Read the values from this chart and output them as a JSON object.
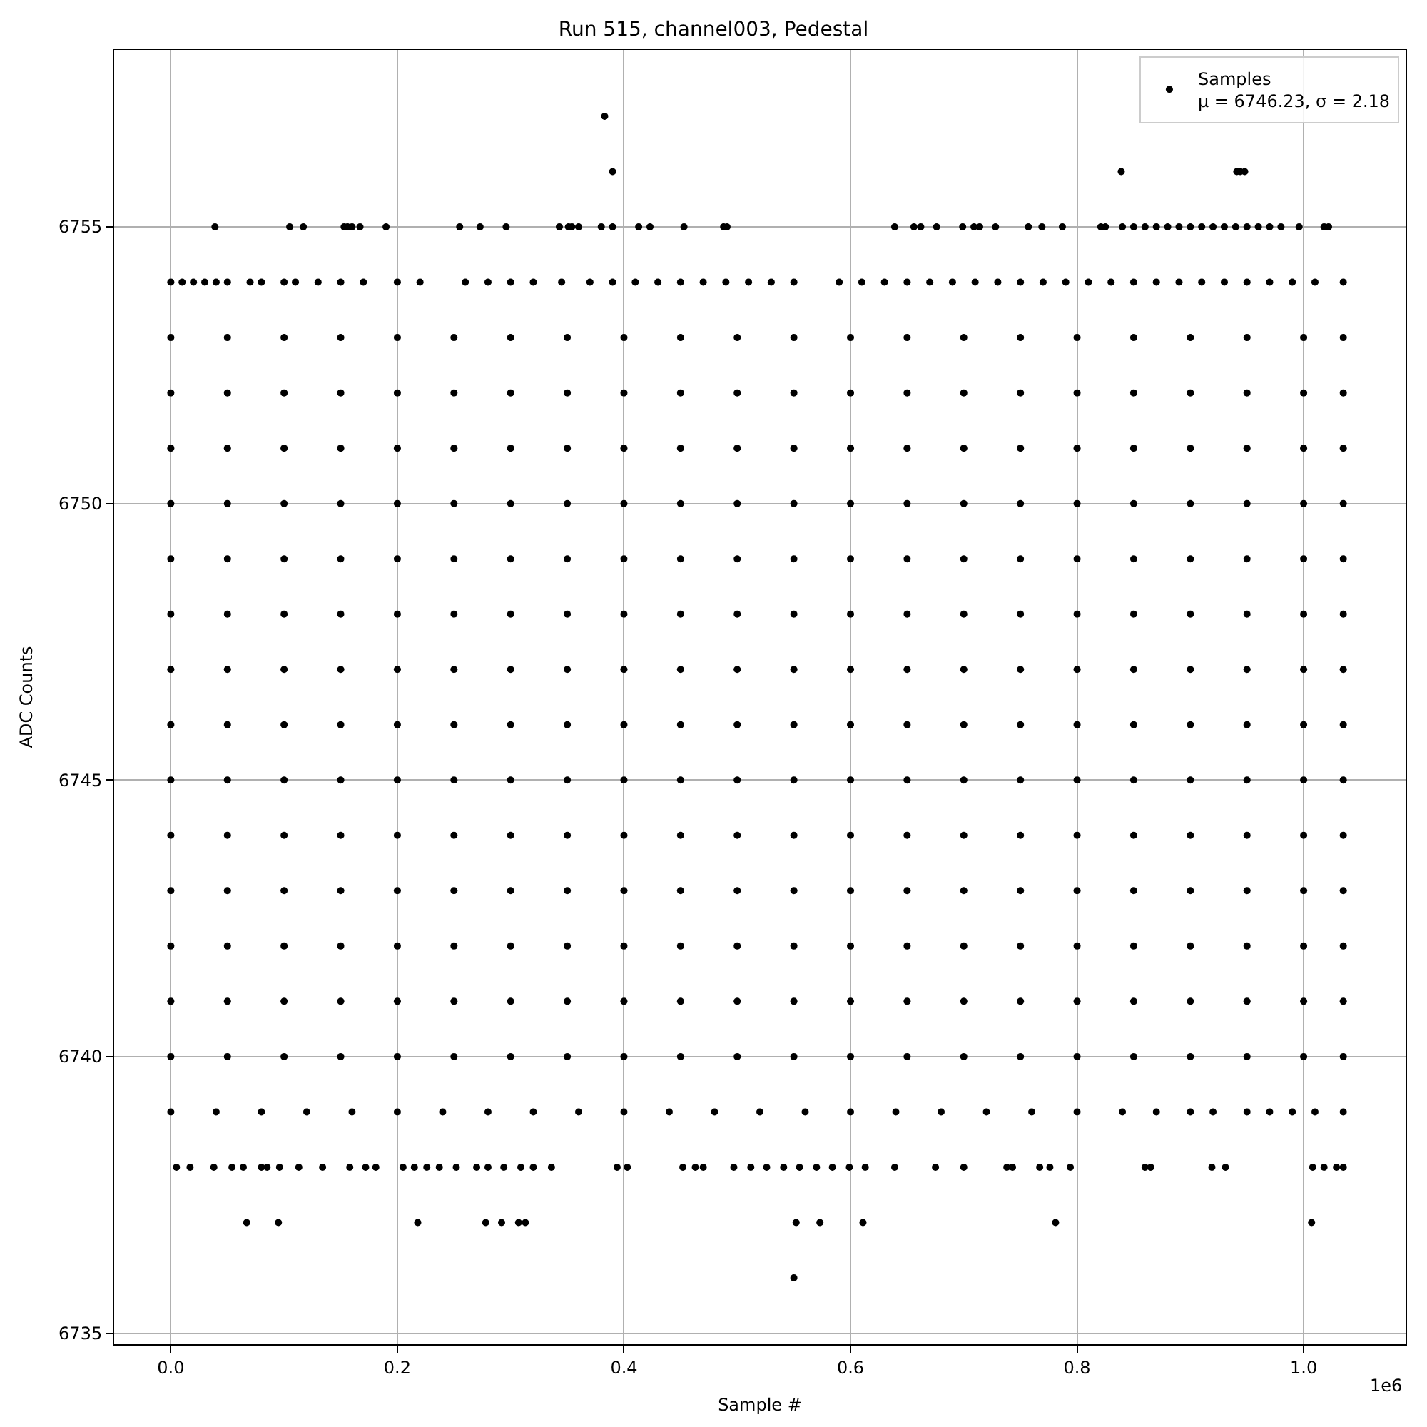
{
  "chart_data": {
    "type": "scatter",
    "title": "Run 515, channel003, Pedestal",
    "xlabel": "Sample #",
    "ylabel": "ADC Counts",
    "xlim": [
      -0.05,
      1.09
    ],
    "xticks": [
      {
        "value": 0,
        "label": "0.0"
      },
      0.2,
      0.4,
      0.6,
      0.8,
      {
        "value": 1,
        "label": "1.0"
      }
    ],
    "ylim": [
      6734.8,
      6758.2
    ],
    "yticks": [
      6735,
      6740,
      6745,
      6750,
      6755
    ],
    "grid": true,
    "legend": "top right",
    "marker": "circle",
    "annotations": [
      "1e6"
    ],
    "series": [
      {
        "name": "Samples\nμ = 6746.23, σ = 2.18",
        "color": "#000000",
        "x": [
          0.383,
          0.39,
          0.839,
          0.941,
          0.944,
          0.948
        ],
        "values": [
          6757,
          6756,
          6756,
          6756,
          6756,
          6756
        ]
      },
      {
        "color": "#000000",
        "x": [
          0.039,
          0.105,
          0.117,
          0.153,
          0.156,
          0.16,
          0.167,
          0.19,
          0.255,
          0.273,
          0.296,
          0.343,
          0.351,
          0.354,
          0.36,
          0.38,
          0.39,
          0.413,
          0.423,
          0.453,
          0.488,
          0.491,
          0.639,
          0.656,
          0.662,
          0.676,
          0.699,
          0.709,
          0.714,
          0.728,
          0.757,
          0.769,
          0.787,
          0.821,
          0.825,
          0.84,
          0.85,
          0.86,
          0.87,
          0.88,
          0.89,
          0.9,
          0.91,
          0.92,
          0.93,
          0.94,
          0.95,
          0.96,
          0.97,
          0.98,
          0.996,
          1.018,
          1.022
        ],
        "values": [
          6755,
          6755,
          6755,
          6755,
          6755,
          6755,
          6755,
          6755,
          6755,
          6755,
          6755,
          6755,
          6755,
          6755,
          6755,
          6755,
          6755,
          6755,
          6755,
          6755,
          6755,
          6755,
          6755,
          6755,
          6755,
          6755,
          6755,
          6755,
          6755,
          6755,
          6755,
          6755,
          6755,
          6755,
          6755,
          6755,
          6755,
          6755,
          6755,
          6755,
          6755,
          6755,
          6755,
          6755,
          6755,
          6755,
          6755,
          6755,
          6755,
          6755,
          6755,
          6755,
          6755
        ]
      },
      {
        "color": "#000000",
        "x": [
          0,
          0.01,
          0.02,
          0.03,
          0.04,
          0.05,
          0.07,
          0.08,
          0.1,
          0.11,
          0.13,
          0.15,
          0.17,
          0.2,
          0.22,
          0.26,
          0.28,
          0.3,
          0.32,
          0.345,
          0.37,
          0.39,
          0.41,
          0.43,
          0.45,
          0.47,
          0.49,
          0.51,
          0.53,
          0.55,
          0.59,
          0.61,
          0.63,
          0.65,
          0.67,
          0.69,
          0.71,
          0.73,
          0.75,
          0.77,
          0.79,
          0.81,
          0.83,
          0.85,
          0.87,
          0.89,
          0.91,
          0.93,
          0.95,
          0.97,
          0.99,
          1.01,
          1.035
        ],
        "values": [
          6754,
          6754,
          6754,
          6754,
          6754,
          6754,
          6754,
          6754,
          6754,
          6754,
          6754,
          6754,
          6754,
          6754,
          6754,
          6754,
          6754,
          6754,
          6754,
          6754,
          6754,
          6754,
          6754,
          6754,
          6754,
          6754,
          6754,
          6754,
          6754,
          6754,
          6754,
          6754,
          6754,
          6754,
          6754,
          6754,
          6754,
          6754,
          6754,
          6754,
          6754,
          6754,
          6754,
          6754,
          6754,
          6754,
          6754,
          6754,
          6754,
          6754,
          6754,
          6754,
          6754
        ]
      },
      {
        "color": "#000000",
        "x": [
          0,
          0.05,
          0.1,
          0.15,
          0.2,
          0.25,
          0.3,
          0.35,
          0.4,
          0.45,
          0.5,
          0.55,
          0.6,
          0.65,
          0.7,
          0.75,
          0.8,
          0.85,
          0.9,
          0.95,
          1,
          1.035
        ],
        "values": [
          6753,
          6753,
          6753,
          6753,
          6753,
          6753,
          6753,
          6753,
          6753,
          6753,
          6753,
          6753,
          6753,
          6753,
          6753,
          6753,
          6753,
          6753,
          6753,
          6753,
          6753,
          6753
        ]
      },
      {
        "color": "#000000",
        "x": [
          0,
          0.05,
          0.1,
          0.15,
          0.2,
          0.25,
          0.3,
          0.35,
          0.4,
          0.45,
          0.5,
          0.55,
          0.6,
          0.65,
          0.7,
          0.75,
          0.8,
          0.85,
          0.9,
          0.95,
          1,
          1.035
        ],
        "values": [
          6752,
          6752,
          6752,
          6752,
          6752,
          6752,
          6752,
          6752,
          6752,
          6752,
          6752,
          6752,
          6752,
          6752,
          6752,
          6752,
          6752,
          6752,
          6752,
          6752,
          6752,
          6752
        ]
      },
      {
        "color": "#000000",
        "x": [
          0,
          0.05,
          0.1,
          0.15,
          0.2,
          0.25,
          0.3,
          0.35,
          0.4,
          0.45,
          0.5,
          0.55,
          0.6,
          0.65,
          0.7,
          0.75,
          0.8,
          0.85,
          0.9,
          0.95,
          1,
          1.035
        ],
        "values": [
          6751,
          6751,
          6751,
          6751,
          6751,
          6751,
          6751,
          6751,
          6751,
          6751,
          6751,
          6751,
          6751,
          6751,
          6751,
          6751,
          6751,
          6751,
          6751,
          6751,
          6751,
          6751
        ]
      },
      {
        "color": "#000000",
        "x": [
          0,
          0.05,
          0.1,
          0.15,
          0.2,
          0.25,
          0.3,
          0.35,
          0.4,
          0.45,
          0.5,
          0.55,
          0.6,
          0.65,
          0.7,
          0.75,
          0.8,
          0.85,
          0.9,
          0.95,
          1,
          1.035
        ],
        "values": [
          6750,
          6750,
          6750,
          6750,
          6750,
          6750,
          6750,
          6750,
          6750,
          6750,
          6750,
          6750,
          6750,
          6750,
          6750,
          6750,
          6750,
          6750,
          6750,
          6750,
          6750,
          6750
        ]
      },
      {
        "color": "#000000",
        "x": [
          0,
          0.05,
          0.1,
          0.15,
          0.2,
          0.25,
          0.3,
          0.35,
          0.4,
          0.45,
          0.5,
          0.55,
          0.6,
          0.65,
          0.7,
          0.75,
          0.8,
          0.85,
          0.9,
          0.95,
          1,
          1.035
        ],
        "values": [
          6749,
          6749,
          6749,
          6749,
          6749,
          6749,
          6749,
          6749,
          6749,
          6749,
          6749,
          6749,
          6749,
          6749,
          6749,
          6749,
          6749,
          6749,
          6749,
          6749,
          6749,
          6749
        ]
      },
      {
        "color": "#000000",
        "x": [
          0,
          0.05,
          0.1,
          0.15,
          0.2,
          0.25,
          0.3,
          0.35,
          0.4,
          0.45,
          0.5,
          0.55,
          0.6,
          0.65,
          0.7,
          0.75,
          0.8,
          0.85,
          0.9,
          0.95,
          1,
          1.035
        ],
        "values": [
          6748,
          6748,
          6748,
          6748,
          6748,
          6748,
          6748,
          6748,
          6748,
          6748,
          6748,
          6748,
          6748,
          6748,
          6748,
          6748,
          6748,
          6748,
          6748,
          6748,
          6748,
          6748
        ]
      },
      {
        "color": "#000000",
        "x": [
          0,
          0.05,
          0.1,
          0.15,
          0.2,
          0.25,
          0.3,
          0.35,
          0.4,
          0.45,
          0.5,
          0.55,
          0.6,
          0.65,
          0.7,
          0.75,
          0.8,
          0.85,
          0.9,
          0.95,
          1,
          1.035
        ],
        "values": [
          6747,
          6747,
          6747,
          6747,
          6747,
          6747,
          6747,
          6747,
          6747,
          6747,
          6747,
          6747,
          6747,
          6747,
          6747,
          6747,
          6747,
          6747,
          6747,
          6747,
          6747,
          6747
        ]
      },
      {
        "color": "#000000",
        "x": [
          0,
          0.05,
          0.1,
          0.15,
          0.2,
          0.25,
          0.3,
          0.35,
          0.4,
          0.45,
          0.5,
          0.55,
          0.6,
          0.65,
          0.7,
          0.75,
          0.8,
          0.85,
          0.9,
          0.95,
          1,
          1.035
        ],
        "values": [
          6746,
          6746,
          6746,
          6746,
          6746,
          6746,
          6746,
          6746,
          6746,
          6746,
          6746,
          6746,
          6746,
          6746,
          6746,
          6746,
          6746,
          6746,
          6746,
          6746,
          6746,
          6746
        ]
      },
      {
        "color": "#000000",
        "x": [
          0,
          0.05,
          0.1,
          0.15,
          0.2,
          0.25,
          0.3,
          0.35,
          0.4,
          0.45,
          0.5,
          0.55,
          0.6,
          0.65,
          0.7,
          0.75,
          0.8,
          0.85,
          0.9,
          0.95,
          1,
          1.035
        ],
        "values": [
          6745,
          6745,
          6745,
          6745,
          6745,
          6745,
          6745,
          6745,
          6745,
          6745,
          6745,
          6745,
          6745,
          6745,
          6745,
          6745,
          6745,
          6745,
          6745,
          6745,
          6745,
          6745
        ]
      },
      {
        "color": "#000000",
        "x": [
          0,
          0.05,
          0.1,
          0.15,
          0.2,
          0.25,
          0.3,
          0.35,
          0.4,
          0.45,
          0.5,
          0.55,
          0.6,
          0.65,
          0.7,
          0.75,
          0.8,
          0.85,
          0.9,
          0.95,
          1,
          1.035
        ],
        "values": [
          6744,
          6744,
          6744,
          6744,
          6744,
          6744,
          6744,
          6744,
          6744,
          6744,
          6744,
          6744,
          6744,
          6744,
          6744,
          6744,
          6744,
          6744,
          6744,
          6744,
          6744,
          6744
        ]
      },
      {
        "color": "#000000",
        "x": [
          0,
          0.05,
          0.1,
          0.15,
          0.2,
          0.25,
          0.3,
          0.35,
          0.4,
          0.45,
          0.5,
          0.55,
          0.6,
          0.65,
          0.7,
          0.75,
          0.8,
          0.85,
          0.9,
          0.95,
          1,
          1.035
        ],
        "values": [
          6743,
          6743,
          6743,
          6743,
          6743,
          6743,
          6743,
          6743,
          6743,
          6743,
          6743,
          6743,
          6743,
          6743,
          6743,
          6743,
          6743,
          6743,
          6743,
          6743,
          6743,
          6743
        ]
      },
      {
        "color": "#000000",
        "x": [
          0,
          0.05,
          0.1,
          0.15,
          0.2,
          0.25,
          0.3,
          0.35,
          0.4,
          0.45,
          0.5,
          0.55,
          0.6,
          0.65,
          0.7,
          0.75,
          0.8,
          0.85,
          0.9,
          0.95,
          1,
          1.035
        ],
        "values": [
          6742,
          6742,
          6742,
          6742,
          6742,
          6742,
          6742,
          6742,
          6742,
          6742,
          6742,
          6742,
          6742,
          6742,
          6742,
          6742,
          6742,
          6742,
          6742,
          6742,
          6742,
          6742
        ]
      },
      {
        "color": "#000000",
        "x": [
          0,
          0.05,
          0.1,
          0.15,
          0.2,
          0.25,
          0.3,
          0.35,
          0.4,
          0.45,
          0.5,
          0.55,
          0.6,
          0.65,
          0.7,
          0.75,
          0.8,
          0.85,
          0.9,
          0.95,
          1,
          1.035
        ],
        "values": [
          6741,
          6741,
          6741,
          6741,
          6741,
          6741,
          6741,
          6741,
          6741,
          6741,
          6741,
          6741,
          6741,
          6741,
          6741,
          6741,
          6741,
          6741,
          6741,
          6741,
          6741,
          6741
        ]
      },
      {
        "color": "#000000",
        "x": [
          0,
          0.05,
          0.1,
          0.15,
          0.2,
          0.25,
          0.3,
          0.35,
          0.4,
          0.45,
          0.5,
          0.55,
          0.6,
          0.65,
          0.7,
          0.75,
          0.8,
          0.85,
          0.9,
          0.95,
          1,
          1.035
        ],
        "values": [
          6740,
          6740,
          6740,
          6740,
          6740,
          6740,
          6740,
          6740,
          6740,
          6740,
          6740,
          6740,
          6740,
          6740,
          6740,
          6740,
          6740,
          6740,
          6740,
          6740,
          6740,
          6740
        ]
      },
      {
        "color": "#000000",
        "x": [
          0,
          0.04,
          0.08,
          0.12,
          0.16,
          0.2,
          0.24,
          0.28,
          0.32,
          0.36,
          0.4,
          0.44,
          0.48,
          0.52,
          0.56,
          0.6,
          0.64,
          0.68,
          0.72,
          0.76,
          0.8,
          0.84,
          0.87,
          0.9,
          0.92,
          0.95,
          0.97,
          0.99,
          1.01,
          1.035
        ],
        "values": [
          6739,
          6739,
          6739,
          6739,
          6739,
          6739,
          6739,
          6739,
          6739,
          6739,
          6739,
          6739,
          6739,
          6739,
          6739,
          6739,
          6739,
          6739,
          6739,
          6739,
          6739,
          6739,
          6739,
          6739,
          6739,
          6739,
          6739,
          6739,
          6739,
          6739
        ]
      },
      {
        "color": "#000000",
        "x": [
          0.005,
          0.017,
          0.038,
          0.054,
          0.064,
          0.08,
          0.085,
          0.096,
          0.113,
          0.134,
          0.158,
          0.172,
          0.181,
          0.205,
          0.215,
          0.226,
          0.237,
          0.252,
          0.27,
          0.28,
          0.294,
          0.309,
          0.32,
          0.336,
          0.394,
          0.403,
          0.452,
          0.463,
          0.47,
          0.497,
          0.512,
          0.526,
          0.541,
          0.555,
          0.57,
          0.584,
          0.599,
          0.613,
          0.639,
          0.675,
          0.7,
          0.738,
          0.743,
          0.767,
          0.776,
          0.794,
          0.86,
          0.865,
          0.919,
          0.931,
          1.008,
          1.018,
          1.029,
          1.035
        ],
        "values": [
          6738,
          6738,
          6738,
          6738,
          6738,
          6738,
          6738,
          6738,
          6738,
          6738,
          6738,
          6738,
          6738,
          6738,
          6738,
          6738,
          6738,
          6738,
          6738,
          6738,
          6738,
          6738,
          6738,
          6738,
          6738,
          6738,
          6738,
          6738,
          6738,
          6738,
          6738,
          6738,
          6738,
          6738,
          6738,
          6738,
          6738,
          6738,
          6738,
          6738,
          6738,
          6738,
          6738,
          6738,
          6738,
          6738,
          6738,
          6738,
          6738,
          6738,
          6738,
          6738,
          6738,
          6738
        ]
      },
      {
        "color": "#000000",
        "x": [
          0.067,
          0.095,
          0.218,
          0.278,
          0.292,
          0.307,
          0.313,
          0.552,
          0.573,
          0.611,
          0.781,
          1.007
        ],
        "values": [
          6737,
          6737,
          6737,
          6737,
          6737,
          6737,
          6737,
          6737,
          6737,
          6737,
          6737,
          6737
        ]
      },
      {
        "color": "#000000",
        "x": [
          0.55
        ],
        "values": [
          6736
        ]
      }
    ]
  }
}
